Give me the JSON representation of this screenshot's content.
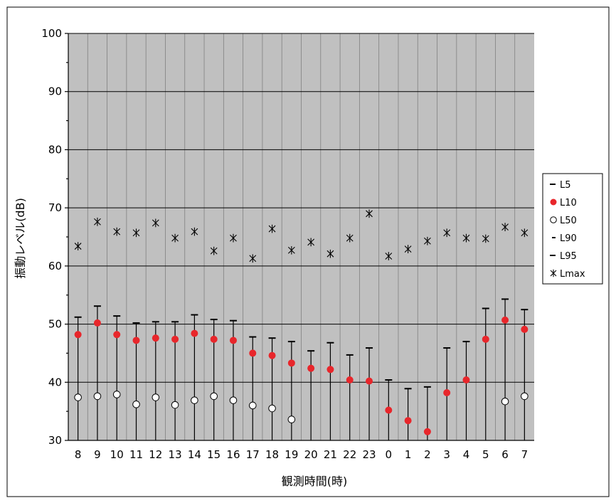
{
  "chart_data": {
    "type": "scatter",
    "xlabel": "観測時間(時)",
    "ylabel": "振動レベル(dB)",
    "ylim": [
      30,
      100
    ],
    "yticks": [
      30,
      40,
      50,
      60,
      70,
      80,
      90,
      100
    ],
    "grid": true,
    "legend_position": "right",
    "categories": [
      "8",
      "9",
      "10",
      "11",
      "12",
      "13",
      "14",
      "15",
      "16",
      "17",
      "18",
      "19",
      "20",
      "21",
      "22",
      "23",
      "0",
      "1",
      "2",
      "3",
      "4",
      "5",
      "6",
      "7"
    ],
    "colors": {
      "plot_bg": "#c0c0c0",
      "l10": "#e8262b",
      "marker": "#000000"
    },
    "series": [
      {
        "name": "L5",
        "marker": "dash-long",
        "values": [
          51.2,
          53.1,
          51.4,
          50.2,
          50.4,
          50.4,
          51.6,
          50.8,
          50.6,
          47.8,
          47.6,
          47.0,
          45.4,
          46.8,
          44.7,
          45.9,
          40.4,
          38.9,
          39.2,
          45.9,
          47.0,
          52.7,
          54.3,
          52.5
        ]
      },
      {
        "name": "L10",
        "marker": "filled-circle",
        "values": [
          48.2,
          50.2,
          48.2,
          47.2,
          47.6,
          47.4,
          48.4,
          47.4,
          47.2,
          45.0,
          44.6,
          43.3,
          42.4,
          42.2,
          40.4,
          40.2,
          35.2,
          33.4,
          31.5,
          38.2,
          40.4,
          47.4,
          50.7,
          49.1
        ]
      },
      {
        "name": "L50",
        "marker": "open-circle",
        "values": [
          37.4,
          37.6,
          37.9,
          36.2,
          37.4,
          36.1,
          36.9,
          37.6,
          36.9,
          36.0,
          35.5,
          33.6,
          null,
          null,
          null,
          null,
          null,
          null,
          null,
          null,
          null,
          null,
          36.7,
          37.6
        ]
      },
      {
        "name": "L90",
        "marker": "dash-short",
        "values": []
      },
      {
        "name": "L95",
        "marker": "dash-long",
        "values": []
      },
      {
        "name": "Lmax",
        "marker": "asterisk",
        "values": [
          63.4,
          67.6,
          65.9,
          65.7,
          67.4,
          64.8,
          65.9,
          62.6,
          64.8,
          61.3,
          66.4,
          62.7,
          64.1,
          62.1,
          64.8,
          69.0,
          61.7,
          62.9,
          64.3,
          65.7,
          64.8,
          64.7,
          66.7,
          65.7
        ]
      }
    ]
  }
}
